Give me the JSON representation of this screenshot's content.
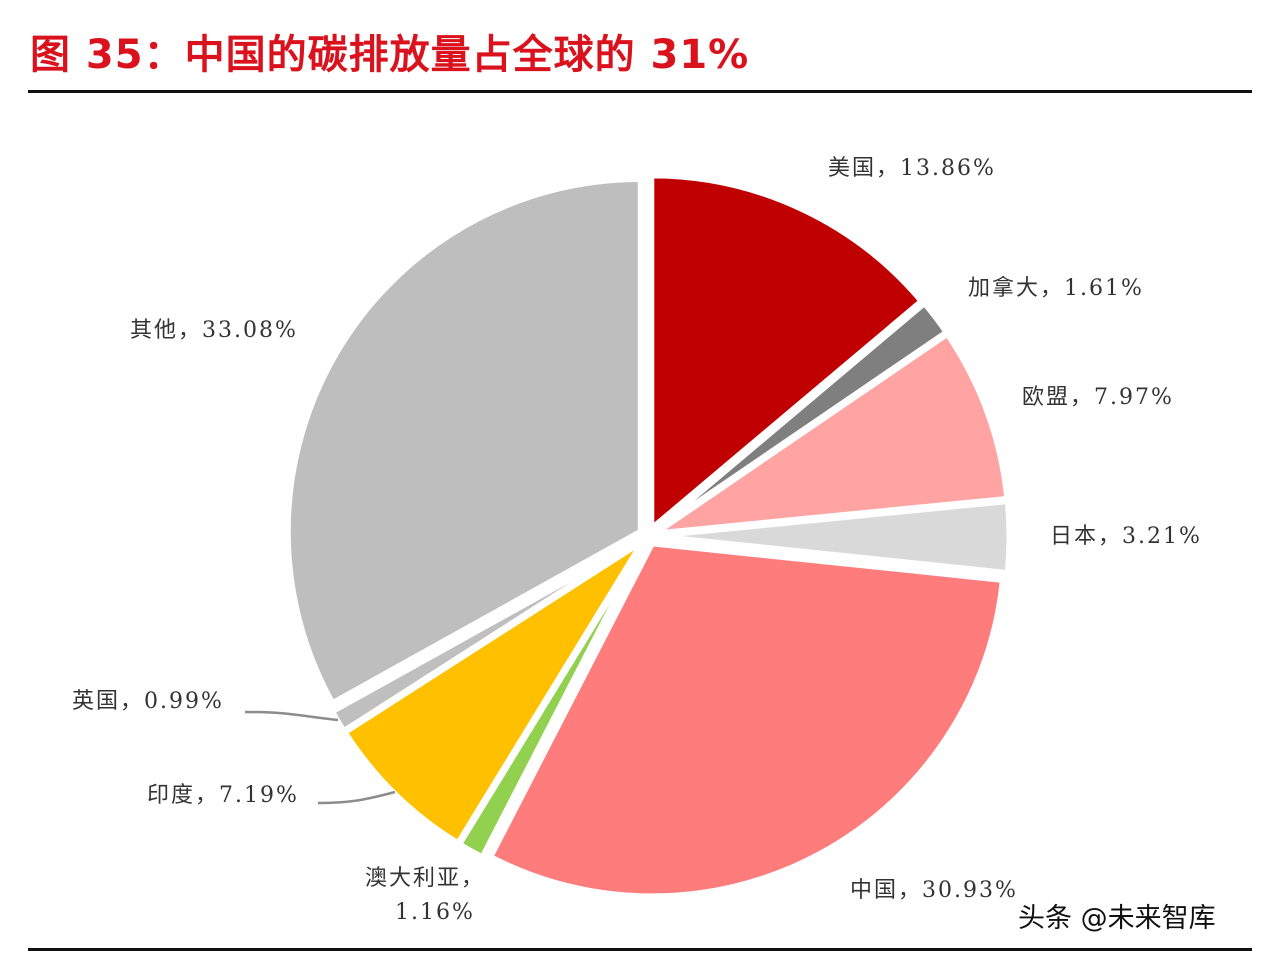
{
  "header": {
    "title": "图 35：中国的碳排放量占全球的 31%"
  },
  "watermark": "头条 @未来智库",
  "chart_data": {
    "type": "pie",
    "title": "图 35：中国的碳排放量占全球的 31%",
    "start_angle_deg": 0,
    "direction": "clockwise",
    "slices": [
      {
        "name": "美国",
        "value": 13.86,
        "label": "美国，13.86%",
        "color": "#c00000"
      },
      {
        "name": "加拿大",
        "value": 1.61,
        "label": "加拿大，1.61%",
        "color": "#7f7f7f"
      },
      {
        "name": "欧盟",
        "value": 7.97,
        "label": "欧盟，7.97%",
        "color": "#ffa3a3"
      },
      {
        "name": "日本",
        "value": 3.21,
        "label": "日本，3.21%",
        "color": "#d9d9d9"
      },
      {
        "name": "中国",
        "value": 30.93,
        "label": "中国，30.93%",
        "color": "#ff7c7c"
      },
      {
        "name": "澳大利亚",
        "value": 1.16,
        "label": "澳大利亚，1.16%",
        "color": "#92d050"
      },
      {
        "name": "印度",
        "value": 7.19,
        "label": "印度，7.19%",
        "color": "#ffc000"
      },
      {
        "name": "英国",
        "value": 0.99,
        "label": "英国，0.99%",
        "color": "#bfbfbf"
      },
      {
        "name": "其他",
        "value": 33.08,
        "label": "其他，33.08%",
        "color": "#bfbebf"
      }
    ]
  },
  "labels": {
    "us": "美国，13.86%",
    "canada": "加拿大，1.61%",
    "eu": "欧盟，7.97%",
    "japan": "日本，3.21%",
    "china": "中国，30.93%",
    "australia_line1": "澳大利亚，",
    "australia_line2": "1.16%",
    "india": "印度，7.19%",
    "uk": "英国，0.99%",
    "other": "其他，33.08%"
  }
}
